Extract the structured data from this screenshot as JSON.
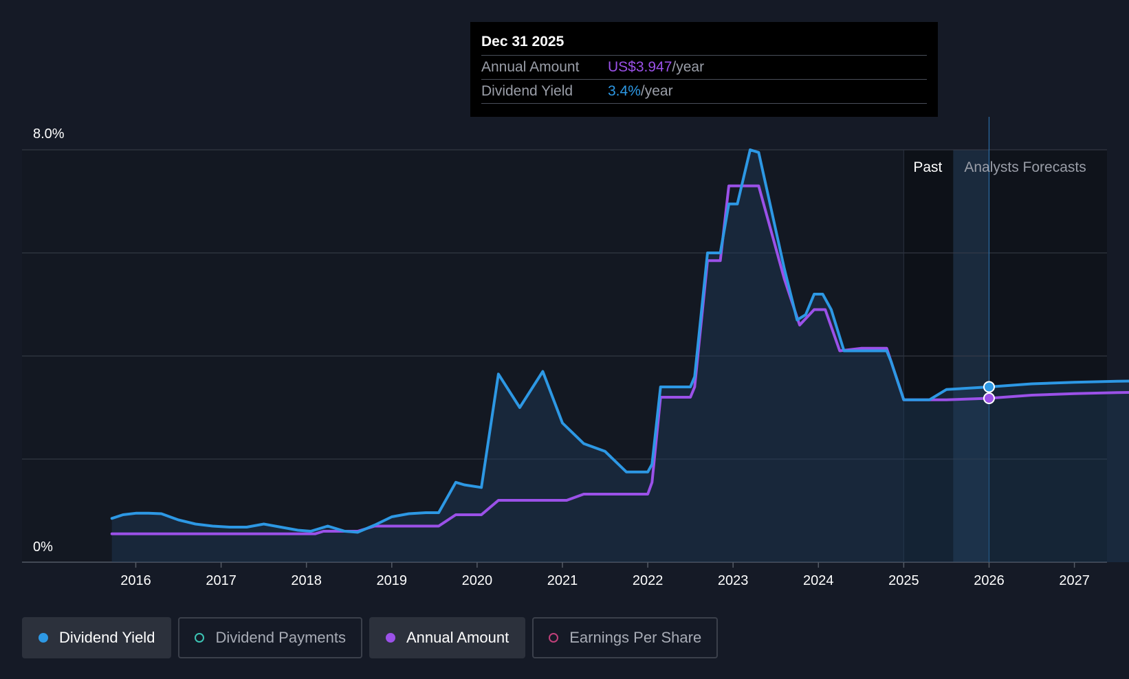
{
  "chart_data": {
    "type": "line",
    "y_axis": {
      "top_label": "8.0%",
      "bottom_label": "0%",
      "ylim": [
        0,
        8
      ]
    },
    "x_ticks": [
      "2016",
      "2017",
      "2018",
      "2019",
      "2020",
      "2021",
      "2022",
      "2023",
      "2024",
      "2025",
      "2026",
      "2027"
    ],
    "xlim": [
      2015.2,
      2027.95
    ],
    "grid": true,
    "regions": {
      "past_label": "Past",
      "forecast_label": "Analysts Forecasts",
      "past_start": 2025.0,
      "forecast_start": 2025.58,
      "cursor_x": 2026.0
    },
    "series": [
      {
        "name": "Dividend Yield",
        "color": "#2d98e4",
        "points": [
          [
            2015.72,
            0.85
          ],
          [
            2015.85,
            0.92
          ],
          [
            2016.0,
            0.95
          ],
          [
            2016.15,
            0.95
          ],
          [
            2016.3,
            0.94
          ],
          [
            2016.5,
            0.82
          ],
          [
            2016.7,
            0.74
          ],
          [
            2016.9,
            0.7
          ],
          [
            2017.1,
            0.68
          ],
          [
            2017.3,
            0.68
          ],
          [
            2017.5,
            0.74
          ],
          [
            2017.7,
            0.68
          ],
          [
            2017.9,
            0.62
          ],
          [
            2018.05,
            0.6
          ],
          [
            2018.25,
            0.7
          ],
          [
            2018.45,
            0.6
          ],
          [
            2018.6,
            0.58
          ],
          [
            2018.8,
            0.72
          ],
          [
            2019.0,
            0.88
          ],
          [
            2019.2,
            0.94
          ],
          [
            2019.4,
            0.96
          ],
          [
            2019.55,
            0.96
          ],
          [
            2019.75,
            1.55
          ],
          [
            2019.85,
            1.5
          ],
          [
            2020.05,
            1.45
          ],
          [
            2020.25,
            3.65
          ],
          [
            2020.5,
            3.0
          ],
          [
            2020.77,
            3.7
          ],
          [
            2021.0,
            2.7
          ],
          [
            2021.25,
            2.3
          ],
          [
            2021.5,
            2.15
          ],
          [
            2021.75,
            1.75
          ],
          [
            2022.0,
            1.75
          ],
          [
            2022.05,
            1.9
          ],
          [
            2022.15,
            3.4
          ],
          [
            2022.5,
            3.4
          ],
          [
            2022.55,
            3.6
          ],
          [
            2022.7,
            6.0
          ],
          [
            2022.85,
            6.0
          ],
          [
            2022.95,
            6.95
          ],
          [
            2023.05,
            6.95
          ],
          [
            2023.2,
            8.0
          ],
          [
            2023.3,
            7.95
          ],
          [
            2023.4,
            7.2
          ],
          [
            2023.6,
            5.7
          ],
          [
            2023.75,
            4.7
          ],
          [
            2023.85,
            4.8
          ],
          [
            2023.95,
            5.2
          ],
          [
            2024.05,
            5.2
          ],
          [
            2024.15,
            4.9
          ],
          [
            2024.3,
            4.1
          ],
          [
            2024.5,
            4.1
          ],
          [
            2024.8,
            4.1
          ],
          [
            2024.85,
            3.9
          ],
          [
            2025.0,
            3.15
          ],
          [
            2025.3,
            3.15
          ],
          [
            2025.5,
            3.35
          ],
          [
            2026.0,
            3.4
          ],
          [
            2026.5,
            3.46
          ],
          [
            2027.0,
            3.49
          ],
          [
            2027.5,
            3.51
          ],
          [
            2027.95,
            3.52
          ]
        ]
      },
      {
        "name": "Annual Amount",
        "color": "#9b51e8",
        "points": [
          [
            2015.72,
            0.55
          ],
          [
            2016.0,
            0.55
          ],
          [
            2017.0,
            0.55
          ],
          [
            2018.0,
            0.55
          ],
          [
            2018.1,
            0.55
          ],
          [
            2018.2,
            0.6
          ],
          [
            2018.6,
            0.6
          ],
          [
            2018.8,
            0.7
          ],
          [
            2019.2,
            0.7
          ],
          [
            2019.55,
            0.7
          ],
          [
            2019.75,
            0.92
          ],
          [
            2020.05,
            0.92
          ],
          [
            2020.25,
            1.2
          ],
          [
            2020.6,
            1.2
          ],
          [
            2021.05,
            1.2
          ],
          [
            2021.25,
            1.32
          ],
          [
            2021.6,
            1.32
          ],
          [
            2022.0,
            1.32
          ],
          [
            2022.05,
            1.55
          ],
          [
            2022.15,
            3.2
          ],
          [
            2022.5,
            3.2
          ],
          [
            2022.55,
            3.4
          ],
          [
            2022.7,
            5.85
          ],
          [
            2022.85,
            5.85
          ],
          [
            2022.95,
            7.3
          ],
          [
            2023.1,
            7.3
          ],
          [
            2023.3,
            7.3
          ],
          [
            2023.4,
            6.7
          ],
          [
            2023.6,
            5.5
          ],
          [
            2023.78,
            4.6
          ],
          [
            2023.95,
            4.9
          ],
          [
            2024.08,
            4.9
          ],
          [
            2024.25,
            4.1
          ],
          [
            2024.5,
            4.15
          ],
          [
            2024.8,
            4.15
          ],
          [
            2024.85,
            3.9
          ],
          [
            2025.0,
            3.15
          ],
          [
            2025.5,
            3.15
          ],
          [
            2026.0,
            3.18
          ],
          [
            2026.5,
            3.24
          ],
          [
            2027.0,
            3.27
          ],
          [
            2027.5,
            3.29
          ],
          [
            2027.95,
            3.3
          ]
        ]
      }
    ]
  },
  "tooltip": {
    "date": "Dec 31 2025",
    "rows": [
      {
        "label": "Annual Amount",
        "value": "US$3.947",
        "unit": "/year",
        "color": "#9b51e8"
      },
      {
        "label": "Dividend Yield",
        "value": "3.4%",
        "unit": "/year",
        "color": "#2d98e4"
      }
    ]
  },
  "legend": [
    {
      "label": "Dividend Yield",
      "active": true,
      "color": "#2d98e4"
    },
    {
      "label": "Dividend Payments",
      "active": false,
      "color": "#3cc4b4"
    },
    {
      "label": "Annual Amount",
      "active": true,
      "color": "#9b51e8"
    },
    {
      "label": "Earnings Per Share",
      "active": false,
      "color": "#c0407a"
    }
  ]
}
